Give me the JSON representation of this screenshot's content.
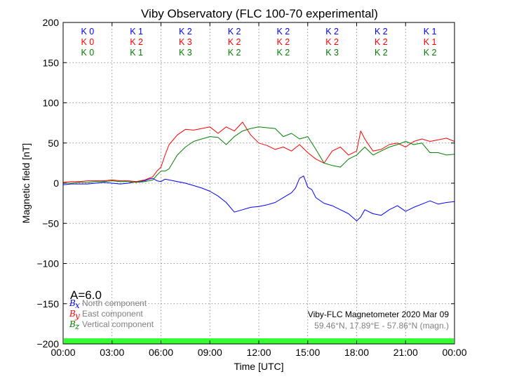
{
  "chart_data": {
    "type": "line",
    "title": "Viby Observatory (FLC 100-70 experimental)",
    "xlabel": "Time [UTC]",
    "ylabel": "Magnetic field [nT]",
    "xlim": [
      0,
      24
    ],
    "ylim": [
      -200,
      200
    ],
    "grid": true,
    "x_tick_labels": [
      "00:00",
      "03:00",
      "06:00",
      "09:00",
      "12:00",
      "15:00",
      "18:00",
      "21:00",
      "00:00"
    ],
    "y_tick_labels": [
      "200",
      "150",
      "100",
      "50",
      "0",
      "−50",
      "−100",
      "−150",
      "−200"
    ],
    "k_index_colors": [
      "#0000ff",
      "#ff0000",
      "#008000"
    ],
    "k_index_rows": [
      [
        "K 0",
        "K 1",
        "K 2",
        "K 2",
        "K 2",
        "K 2",
        "K 2",
        "K 1"
      ],
      [
        "K 0",
        "K 2",
        "K 3",
        "K 2",
        "K 2",
        "K 2",
        "K 2",
        "K 1"
      ],
      [
        "K 0",
        "K 1",
        "K 3",
        "K 2",
        "K 2",
        "K 3",
        "K 2",
        "K 2"
      ]
    ],
    "a_index": "A=6.0",
    "activity_bar_color": "#33ff33",
    "legend": {
      "placement": "lower-left",
      "entries": [
        {
          "symbol": "B",
          "sub": "x",
          "label": "North component",
          "color": "#0000ff"
        },
        {
          "symbol": "B",
          "sub": "y",
          "label": "East component",
          "color": "#ff0000"
        },
        {
          "symbol": "B",
          "sub": "z",
          "label": "Vertical component",
          "color": "#008000"
        }
      ]
    },
    "info_line1": "Viby-FLC Magnetometer 2020 Mar 09",
    "info_line2": "59.46°N, 17.89°E - 57.86°N (magn.)",
    "series": [
      {
        "color": "#0000ff",
        "x": [
          0,
          0.5,
          1,
          1.5,
          2,
          2.5,
          3,
          3.5,
          4,
          4.5,
          5,
          5.25,
          5.5,
          5.75,
          6,
          6.25,
          6.5,
          7,
          7.5,
          8,
          8.5,
          9,
          9.5,
          10,
          10.5,
          11,
          11.5,
          12,
          12.5,
          13,
          13.5,
          14,
          14.25,
          14.5,
          14.75,
          15,
          15.25,
          15.5,
          16,
          16.5,
          17,
          17.5,
          18,
          18.25,
          18.5,
          19,
          19.5,
          20,
          20.5,
          21,
          21.5,
          22,
          22.5,
          23,
          23.5,
          24
        ],
        "y": [
          -2,
          -1,
          -1,
          -1,
          0,
          1,
          0,
          -1,
          0,
          2,
          3,
          5,
          6,
          3,
          2,
          5,
          4,
          2,
          0,
          -3,
          -6,
          -10,
          -16,
          -24,
          -36,
          -33,
          -30,
          -29,
          -27,
          -24,
          -18,
          -12,
          -6,
          6,
          9,
          -5,
          -8,
          -18,
          -25,
          -28,
          -33,
          -38,
          -47,
          -42,
          -33,
          -38,
          -40,
          -33,
          -28,
          -35,
          -30,
          -26,
          -22,
          -26,
          -24,
          -23
        ]
      },
      {
        "color": "#ff0000",
        "x": [
          0,
          0.5,
          1,
          1.5,
          2,
          2.5,
          3,
          3.5,
          4,
          4.5,
          5,
          5.25,
          5.5,
          5.75,
          6,
          6.25,
          6.5,
          7,
          7.5,
          8,
          8.5,
          9,
          9.5,
          10,
          10.5,
          11,
          11.5,
          12,
          12.5,
          13,
          13.5,
          14,
          14.5,
          15,
          15.5,
          16,
          16.5,
          17,
          17.5,
          18,
          18.25,
          18.5,
          19,
          19.5,
          20,
          20.5,
          21,
          21.5,
          22,
          22.5,
          23,
          23.5,
          24
        ],
        "y": [
          1,
          2,
          2,
          3,
          3,
          3,
          4,
          3,
          3,
          2,
          4,
          6,
          8,
          15,
          20,
          35,
          48,
          60,
          67,
          66,
          68,
          70,
          62,
          70,
          65,
          76,
          60,
          50,
          47,
          42,
          45,
          40,
          48,
          38,
          30,
          25,
          40,
          45,
          35,
          40,
          65,
          55,
          40,
          42,
          48,
          50,
          45,
          52,
          55,
          52,
          54,
          56,
          52
        ],
        "note": "East component"
      },
      {
        "color": "#008000",
        "x": [
          0,
          0.5,
          1,
          1.5,
          2,
          2.5,
          3,
          3.5,
          4,
          4.5,
          5,
          5.25,
          5.5,
          5.75,
          6,
          6.25,
          6.5,
          7,
          7.5,
          8,
          8.5,
          9,
          9.5,
          10,
          10.5,
          11,
          11.5,
          12,
          12.5,
          13,
          13.5,
          14,
          14.5,
          15,
          15.5,
          16,
          16.5,
          17,
          17.5,
          18,
          18.5,
          19,
          19.5,
          20,
          20.5,
          21,
          21.5,
          22,
          22.5,
          23,
          23.5,
          24
        ],
        "y": [
          0,
          0,
          1,
          1,
          2,
          2,
          3,
          2,
          2,
          1,
          2,
          3,
          4,
          10,
          15,
          15,
          18,
          35,
          45,
          52,
          55,
          58,
          57,
          48,
          58,
          65,
          68,
          70,
          69,
          68,
          58,
          62,
          55,
          58,
          42,
          25,
          22,
          20,
          30,
          35,
          45,
          35,
          40,
          45,
          48,
          52,
          48,
          50,
          38,
          38,
          35,
          36
        ]
      }
    ]
  }
}
